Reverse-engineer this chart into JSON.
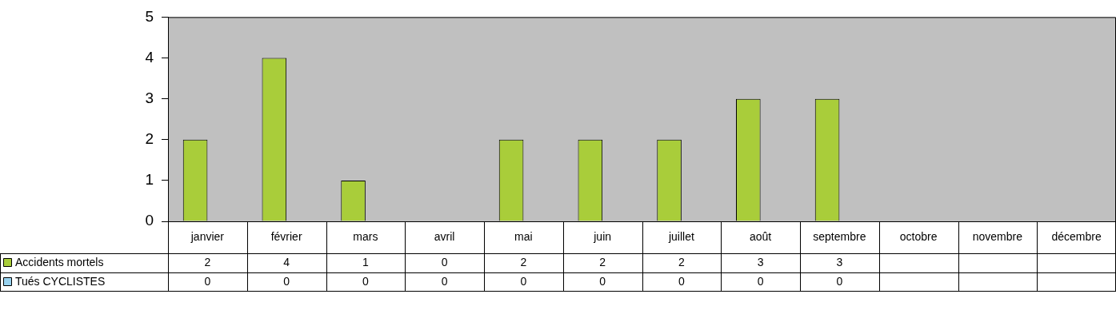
{
  "chart_data": {
    "type": "bar",
    "categories": [
      "janvier",
      "février",
      "mars",
      "avril",
      "mai",
      "juin",
      "juillet",
      "août",
      "septembre",
      "octobre",
      "novembre",
      "décembre"
    ],
    "series": [
      {
        "name": "Accidents mortels",
        "color": "#a9cd3a",
        "values": [
          2,
          4,
          1,
          0,
          2,
          2,
          2,
          3,
          3,
          null,
          null,
          null
        ]
      },
      {
        "name": "Tués CYCLISTES",
        "color": "#99d3f0",
        "values": [
          0,
          0,
          0,
          0,
          0,
          0,
          0,
          0,
          0,
          null,
          null,
          null
        ]
      }
    ],
    "ylim": [
      0,
      5
    ],
    "yticks": [
      0,
      1,
      2,
      3,
      4,
      5
    ],
    "grid": false,
    "legend": "bottom",
    "data_labels": true
  }
}
